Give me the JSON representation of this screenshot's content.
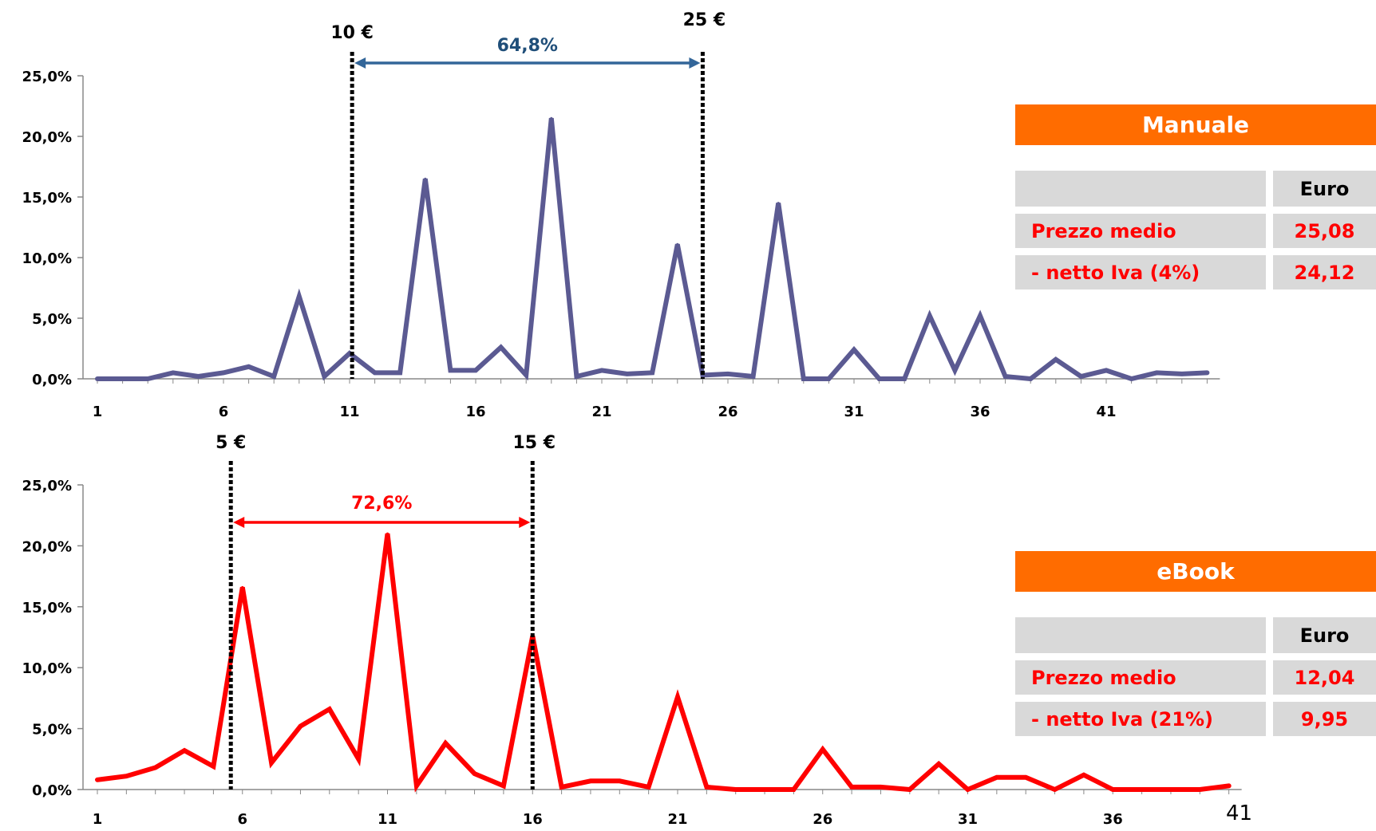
{
  "chart_data": [
    {
      "type": "line",
      "color": "#5b5a92",
      "x": [
        1,
        2,
        3,
        4,
        5,
        6,
        7,
        8,
        9,
        10,
        11,
        12,
        13,
        14,
        15,
        16,
        17,
        18,
        19,
        20,
        21,
        22,
        23,
        24,
        25,
        26,
        27,
        28,
        29,
        30,
        31,
        32,
        33,
        34,
        35,
        36,
        37,
        38,
        39,
        40,
        41,
        42,
        43,
        44,
        45
      ],
      "values": [
        0.0,
        0.0,
        0.0,
        0.5,
        0.2,
        0.5,
        1.0,
        0.2,
        6.8,
        0.2,
        2.1,
        0.5,
        0.5,
        16.5,
        0.7,
        0.7,
        2.6,
        0.3,
        21.5,
        0.2,
        0.7,
        0.4,
        0.5,
        11.1,
        0.3,
        0.4,
        0.2,
        14.5,
        0.0,
        0.0,
        2.4,
        0.0,
        0.0,
        5.2,
        0.7,
        5.2,
        0.2,
        0.0,
        1.6,
        0.2,
        0.7,
        0.0,
        0.5,
        0.4,
        0.5
      ],
      "ylim": [
        0,
        25
      ],
      "yticks": [
        "0,0%",
        "5,0%",
        "10,0%",
        "15,0%",
        "20,0%",
        "25,0%"
      ],
      "xticks": [
        "1",
        "6",
        "11",
        "16",
        "21",
        "26",
        "31",
        "36",
        "41"
      ],
      "annotations": {
        "left_line_x": 11.1,
        "right_line_x": 25,
        "left_label": "10 €",
        "right_label": "25 €",
        "range_label": "64,8%",
        "range_color": "#336699",
        "range_label_color": "#1f4e79"
      }
    },
    {
      "type": "line",
      "color": "#ff0000",
      "x": [
        1,
        2,
        3,
        4,
        5,
        6,
        7,
        8,
        9,
        10,
        11,
        12,
        13,
        14,
        15,
        16,
        17,
        18,
        19,
        20,
        21,
        22,
        23,
        24,
        25,
        26,
        27,
        28,
        29,
        30,
        31,
        32,
        33,
        34,
        35,
        36,
        37,
        38,
        39,
        40
      ],
      "values": [
        0.8,
        1.1,
        1.8,
        3.2,
        1.9,
        16.6,
        2.2,
        5.2,
        6.6,
        2.5,
        21.0,
        0.3,
        3.8,
        1.3,
        0.3,
        12.6,
        0.2,
        0.7,
        0.7,
        0.2,
        7.6,
        0.2,
        0.0,
        0.0,
        0.0,
        3.3,
        0.2,
        0.2,
        0.0,
        2.1,
        0.0,
        1.0,
        1.0,
        0.0,
        1.2,
        0.0,
        0.0,
        0.0,
        0.0,
        0.3
      ],
      "ylim": [
        0,
        25
      ],
      "yticks": [
        "0,0%",
        "5,0%",
        "10,0%",
        "15,0%",
        "20,0%",
        "25,0%"
      ],
      "xticks": [
        "1",
        "6",
        "11",
        "16",
        "21",
        "26",
        "31",
        "36"
      ],
      "annotations": {
        "left_line_x": 5.6,
        "right_line_x": 16,
        "left_label": "5 €",
        "right_label": "15 €",
        "range_label": "72,6%",
        "range_color": "#ff0000",
        "range_label_color": "#ff0000"
      }
    }
  ],
  "panels": {
    "manuale": {
      "title": "Manuale",
      "col_header": "Euro",
      "rows": [
        {
          "label": "Prezzo medio",
          "value": "25,08"
        },
        {
          "label": "- netto Iva (4%)",
          "value": "24,12"
        }
      ]
    },
    "ebook": {
      "title": "eBook",
      "col_header": "Euro",
      "rows": [
        {
          "label": "Prezzo medio",
          "value": "12,04"
        },
        {
          "label": "- netto Iva (21%)",
          "value": "9,95"
        }
      ]
    }
  },
  "colors": {
    "panel_header": "#ff6c00",
    "panel_cell": "#d9d9d9",
    "panel_text": "#ff0000"
  },
  "page_number": "41"
}
